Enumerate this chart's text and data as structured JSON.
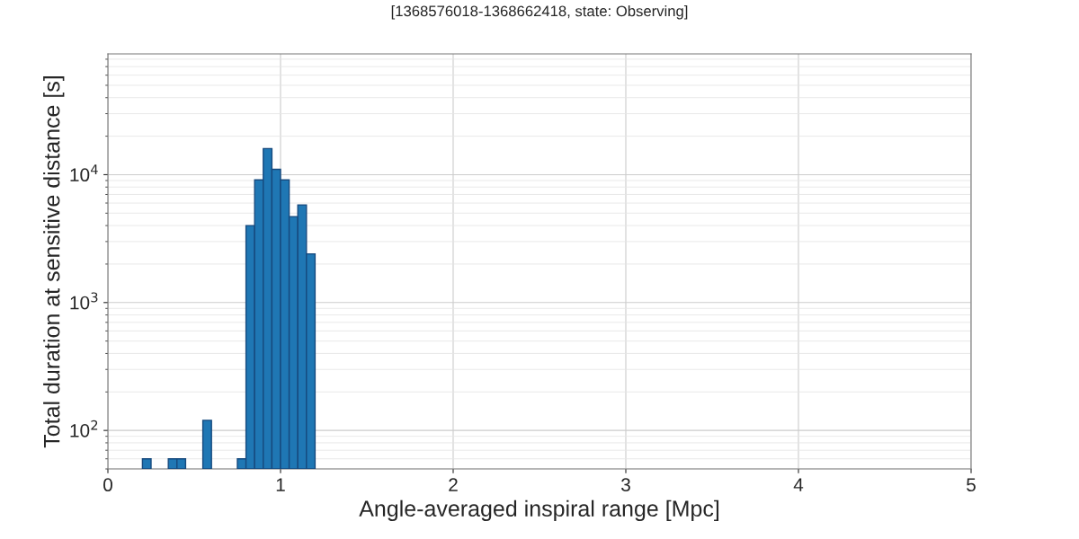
{
  "chart_data": {
    "type": "histogram",
    "title": "[1368576018-1368662418, state: Observing]",
    "xlabel": "Angle-averaged inspiral range [Mpc]",
    "ylabel": "Total duration at sensitive distance [s]",
    "bins": [
      0.2,
      0.25,
      0.3,
      0.35,
      0.4,
      0.45,
      0.5,
      0.55,
      0.6,
      0.65,
      0.7,
      0.75,
      0.8,
      0.85,
      0.9,
      0.95,
      1.0,
      1.05,
      1.1,
      1.15,
      1.2
    ],
    "values": [
      60,
      null,
      null,
      60,
      60,
      null,
      null,
      120,
      null,
      null,
      null,
      60,
      4000,
      9100,
      16000,
      11000,
      9100,
      4700,
      5800,
      2400
    ],
    "color": "#1f77b4",
    "log": "y",
    "xlim": [
      0,
      5
    ],
    "xticks": [
      0,
      1,
      2,
      3,
      4,
      5
    ],
    "ylim": [
      50,
      88000
    ],
    "yticks": [
      {
        "value": 100,
        "label": "10$^{2}$"
      },
      {
        "value": 1000,
        "label": "10$^{3}$"
      },
      {
        "value": 10000,
        "label": "10$^{4}$"
      }
    ],
    "grid": true
  }
}
